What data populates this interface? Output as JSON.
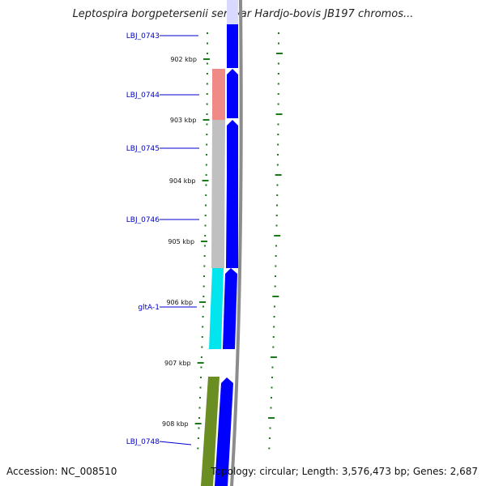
{
  "header": {
    "title": "Leptospira borgpetersenii serovar Hardjo-bovis JB197 chromos..."
  },
  "footer": {
    "accession": "Accession: NC_008510",
    "topology": "Topology: circular; Length: 3,576,473 bp; Genes: 2,687"
  },
  "ticks": [
    {
      "label": "902 kbp"
    },
    {
      "label": "903 kbp"
    },
    {
      "label": "904 kbp"
    },
    {
      "label": "905 kbp"
    },
    {
      "label": "906 kbp"
    },
    {
      "label": "907 kbp"
    },
    {
      "label": "908 kbp"
    }
  ],
  "genes": [
    {
      "label": "LBJ_0743"
    },
    {
      "label": "LBJ_0744"
    },
    {
      "label": "LBJ_0745"
    },
    {
      "label": "LBJ_0746"
    },
    {
      "label": "gltA-1"
    },
    {
      "label": "LBJ_0748"
    }
  ],
  "colors": {
    "cds_forward": "#0000ff",
    "cog_salmon": "#f08a86",
    "cog_gray": "#c0c0c0",
    "cog_cyan": "#00e5ee",
    "cog_olive": "#6b8e23",
    "backbone": "#8c8c8c",
    "tick_green": "#1a7a1a",
    "label_blue": "#0000cc"
  }
}
